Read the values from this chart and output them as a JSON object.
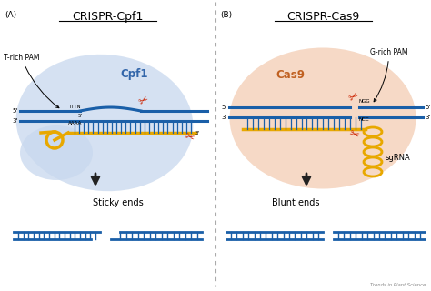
{
  "title_left": "CRISPR-Cpf1",
  "title_right": "CRISPR-Cas9",
  "label_A": "(A)",
  "label_B": "(B)",
  "label_cpf1": "Cpf1",
  "label_cas9": "Cas9",
  "label_trich": "T-rich PAM",
  "label_grich": "G-rich PAM",
  "label_sticky": "Sticky ends",
  "label_blunt": "Blunt ends",
  "label_sgRNA": "sgRNA",
  "label_TTTN": "TTTN",
  "label_AAAA": "AAAA",
  "label_NGG": "NGG",
  "label_NCC": "NCC",
  "label_brand": "Trends in Plant Science",
  "bg_left_color": "#c8d8ee",
  "bg_right_color": "#f0c8b0",
  "dna_blue": "#1a5fa8",
  "rna_gold": "#e8a800",
  "scissors_red": "#cc2200",
  "arrow_dark": "#222222",
  "ladder_color": "#1a5fa8"
}
